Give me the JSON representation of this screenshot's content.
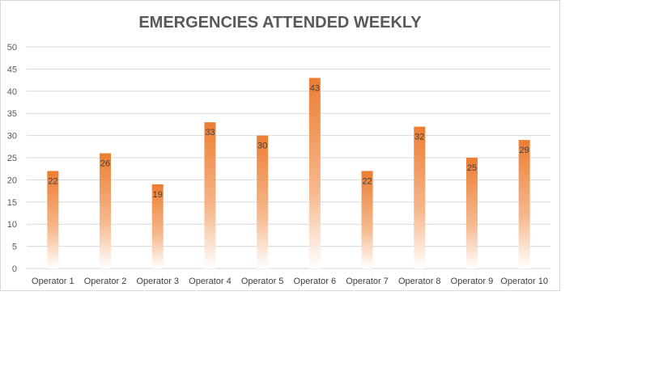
{
  "chart_data": {
    "type": "bar",
    "title": "EMERGENCIES ATTENDED WEEKLY",
    "xlabel": "",
    "ylabel": "",
    "categories": [
      "Operator 1",
      "Operator 2",
      "Operator 3",
      "Operator 4",
      "Operator 5",
      "Operator 6",
      "Operator 7",
      "Operator 8",
      "Operator 9",
      "Operator 10"
    ],
    "values": [
      22,
      26,
      19,
      33,
      30,
      43,
      22,
      32,
      25,
      29
    ],
    "ylim": [
      0,
      50
    ],
    "yticks": [
      0,
      5,
      10,
      15,
      20,
      25,
      30,
      35,
      40,
      45,
      50
    ],
    "grid": true,
    "legend": "none",
    "colors": {
      "bar_top": "#ed7d31",
      "bar_bottom": "#ffffff",
      "grid": "#d9d9d9",
      "text": "#595959"
    }
  }
}
